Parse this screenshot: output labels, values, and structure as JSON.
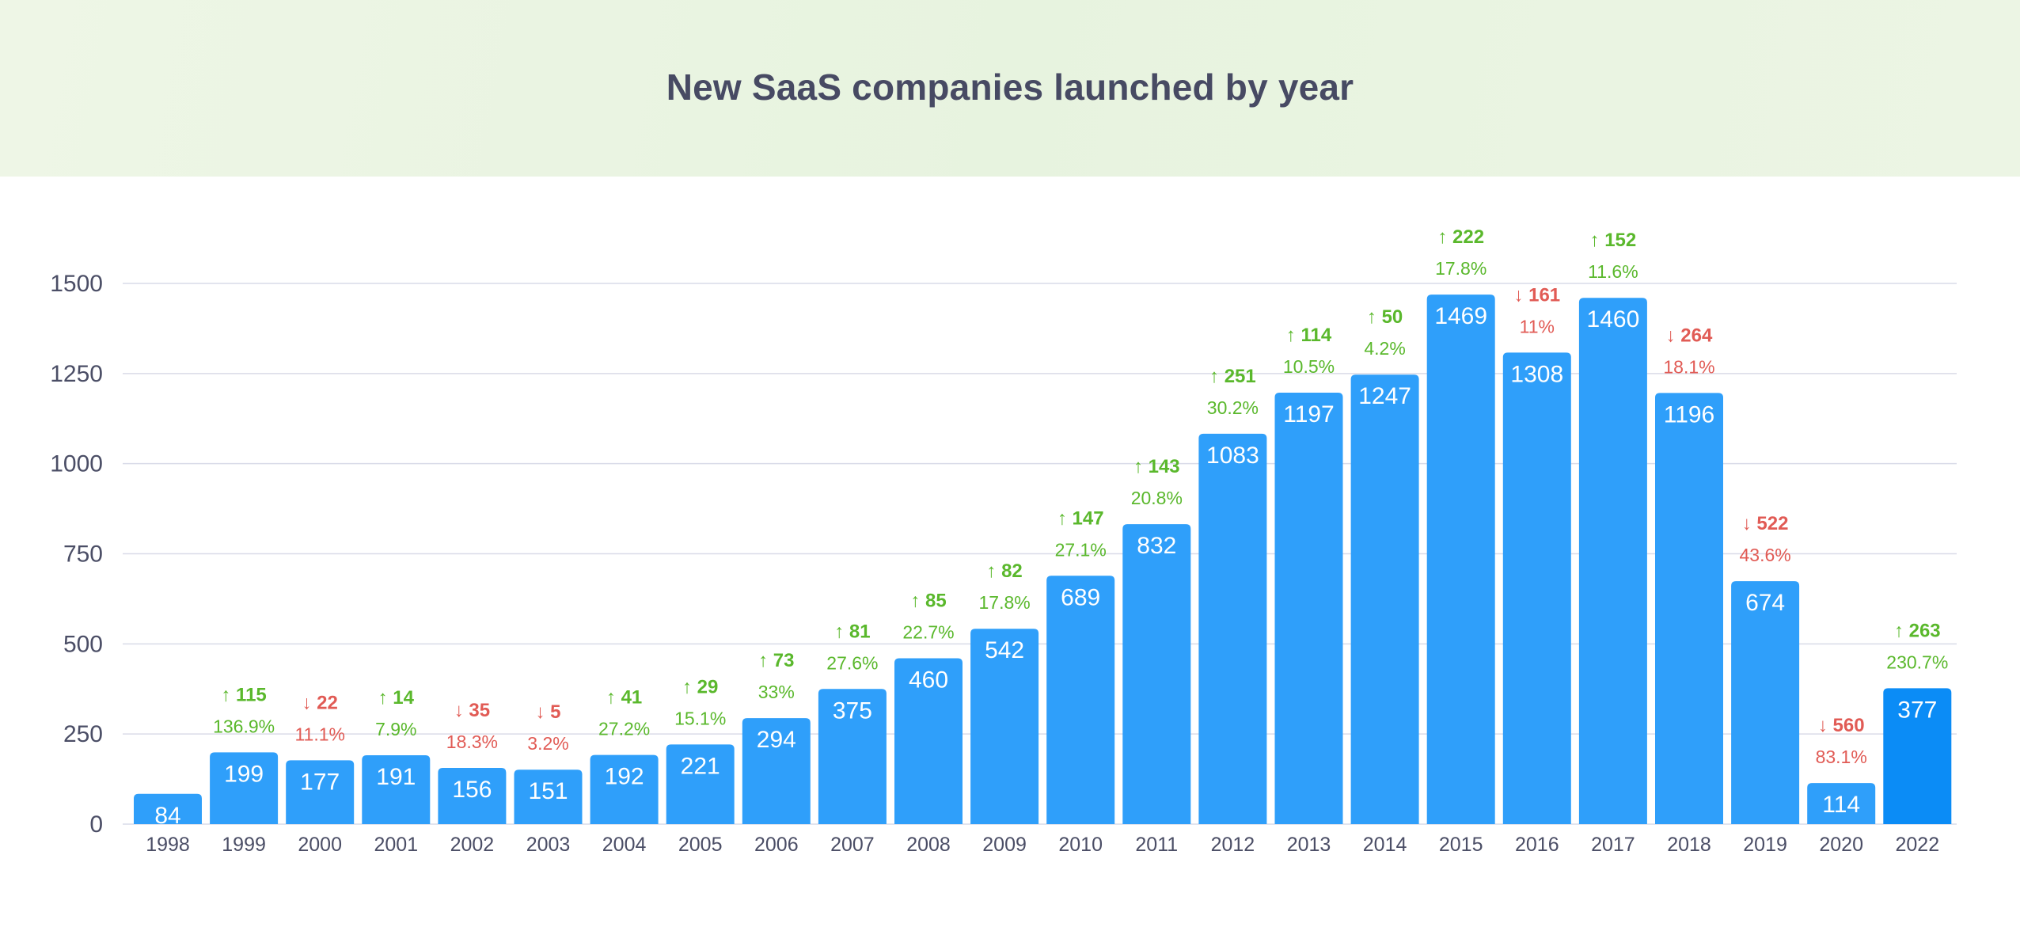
{
  "title": "New SaaS companies launched by year",
  "colors": {
    "bar": "#2f9ffa",
    "bar_highlight": "#0b8cf6",
    "up": "#5ab82c",
    "down": "#e15b55",
    "grid": "#d9dbe8",
    "header_bg": "#e9f4e1"
  },
  "chart_data": {
    "type": "bar",
    "title": "New SaaS companies launched by year",
    "xlabel": "",
    "ylabel": "",
    "ylim": [
      0,
      1500
    ],
    "yticks": [
      "0",
      "250",
      "500",
      "750",
      "1000",
      "1250",
      "1500"
    ],
    "grid": true,
    "categories": [
      "1998",
      "1999",
      "2000",
      "2001",
      "2002",
      "2003",
      "2004",
      "2005",
      "2006",
      "2007",
      "2008",
      "2009",
      "2010",
      "2011",
      "2012",
      "2013",
      "2014",
      "2015",
      "2016",
      "2017",
      "2018",
      "2019",
      "2020",
      "2022"
    ],
    "values": [
      84,
      199,
      177,
      191,
      156,
      151,
      192,
      221,
      294,
      375,
      460,
      542,
      689,
      832,
      1083,
      1197,
      1247,
      1469,
      1308,
      1460,
      1196,
      674,
      114,
      377
    ],
    "value_labels": [
      "84",
      "199",
      "177",
      "191",
      "156",
      "151",
      "192",
      "221",
      "294",
      "375",
      "460",
      "542",
      "689",
      "832",
      "1083",
      "1197",
      "1247",
      "1469",
      "1308",
      "1460",
      "1196",
      "674",
      "114",
      "377"
    ],
    "changes": [
      null,
      {
        "dir": "up",
        "amount": "115",
        "pct": "136.9%"
      },
      {
        "dir": "down",
        "amount": "22",
        "pct": "11.1%"
      },
      {
        "dir": "up",
        "amount": "14",
        "pct": "7.9%"
      },
      {
        "dir": "down",
        "amount": "35",
        "pct": "18.3%"
      },
      {
        "dir": "down",
        "amount": "5",
        "pct": "3.2%"
      },
      {
        "dir": "up",
        "amount": "41",
        "pct": "27.2%"
      },
      {
        "dir": "up",
        "amount": "29",
        "pct": "15.1%"
      },
      {
        "dir": "up",
        "amount": "73",
        "pct": "33%"
      },
      {
        "dir": "up",
        "amount": "81",
        "pct": "27.6%"
      },
      {
        "dir": "up",
        "amount": "85",
        "pct": "22.7%"
      },
      {
        "dir": "up",
        "amount": "82",
        "pct": "17.8%"
      },
      {
        "dir": "up",
        "amount": "147",
        "pct": "27.1%"
      },
      {
        "dir": "up",
        "amount": "143",
        "pct": "20.8%"
      },
      {
        "dir": "up",
        "amount": "251",
        "pct": "30.2%"
      },
      {
        "dir": "up",
        "amount": "114",
        "pct": "10.5%"
      },
      {
        "dir": "up",
        "amount": "50",
        "pct": "4.2%"
      },
      {
        "dir": "up",
        "amount": "222",
        "pct": "17.8%"
      },
      {
        "dir": "down",
        "amount": "161",
        "pct": "11%"
      },
      {
        "dir": "up",
        "amount": "152",
        "pct": "11.6%"
      },
      {
        "dir": "down",
        "amount": "264",
        "pct": "18.1%"
      },
      {
        "dir": "down",
        "amount": "522",
        "pct": "43.6%"
      },
      {
        "dir": "down",
        "amount": "560",
        "pct": "83.1%"
      },
      {
        "dir": "up",
        "amount": "263",
        "pct": "230.7%"
      }
    ],
    "highlight_category": "2022"
  }
}
